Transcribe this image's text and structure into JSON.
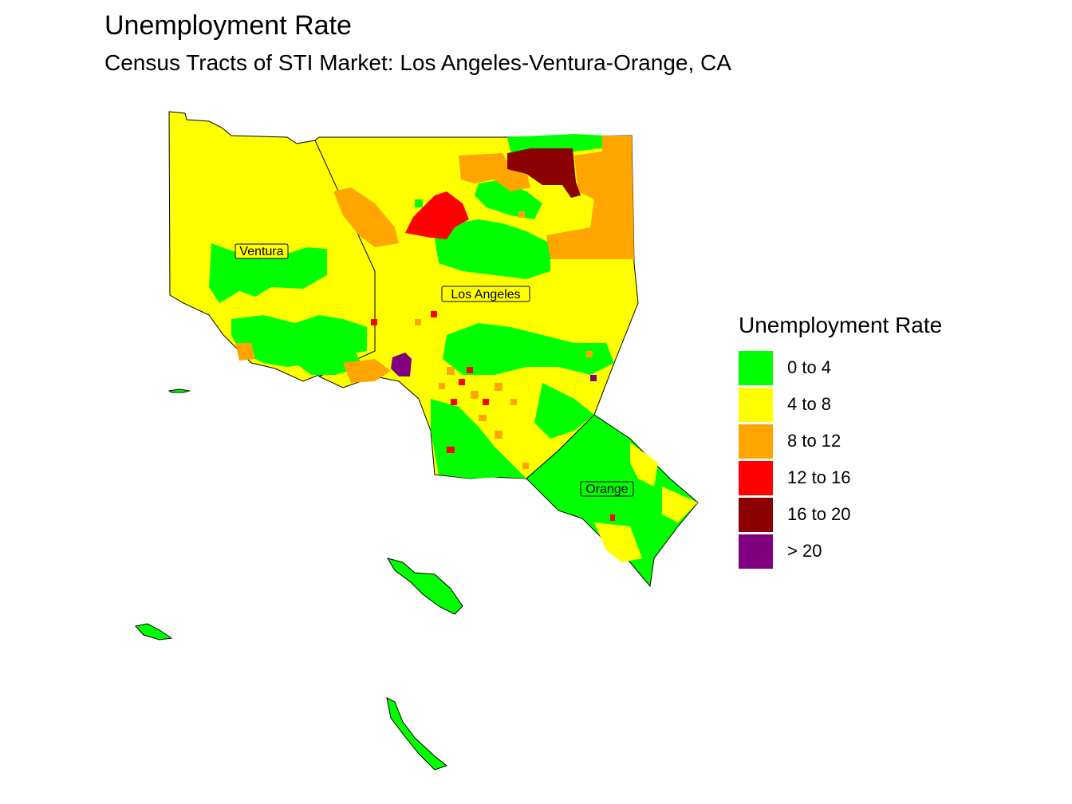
{
  "title": "Unemployment Rate",
  "subtitle": "Census Tracts of STI Market: Los Angeles-Ventura-Orange, CA",
  "legend": {
    "title": "Unemployment Rate",
    "items": [
      {
        "label": "0 to 4",
        "color": "#00ff00"
      },
      {
        "label": "4 to 8",
        "color": "#ffff00"
      },
      {
        "label": "8 to 12",
        "color": "#ffa500"
      },
      {
        "label": "12 to 16",
        "color": "#ff0000"
      },
      {
        "label": "16 to 20",
        "color": "#8b0000"
      },
      {
        "label": "> 20",
        "color": "#800080"
      }
    ]
  },
  "places": [
    "Ventura",
    "Los Angeles",
    "Orange"
  ]
}
